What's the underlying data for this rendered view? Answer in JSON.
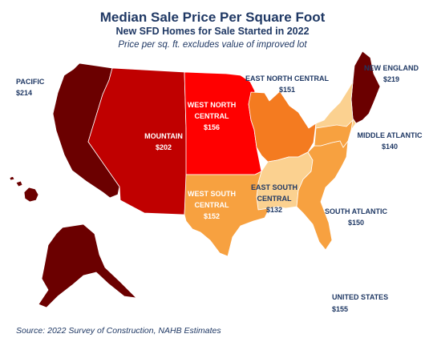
{
  "title": "Median Sale Price Per Square Foot",
  "subtitle": "New SFD Homes for Sale Started in 2022",
  "note": "Price per sq. ft. excludes value of improved lot",
  "source": "Source: 2022 Survey of Construction, NAHB Estimates",
  "colors": {
    "pacific": "#6b0000",
    "new_england": "#6b0000",
    "mountain": "#c00000",
    "west_north_central": "#ff0000",
    "east_north_central": "#f47b20",
    "west_south_central": "#f7a140",
    "south_atlantic": "#f7a140",
    "middle_atlantic": "#f7a140",
    "east_south_central": "#fbd190",
    "label_dark": "#1f3864",
    "label_white": "#ffffff"
  },
  "regions": {
    "pacific": {
      "name": "PACIFIC",
      "value": "$214"
    },
    "mountain": {
      "name": "MOUNTAIN",
      "value": "$202"
    },
    "west_north_central": {
      "name_line1": "WEST NORTH",
      "name_line2": "CENTRAL",
      "value": "$156"
    },
    "east_north_central": {
      "name": "EAST NORTH CENTRAL",
      "value": "$151"
    },
    "new_england": {
      "name": "NEW ENGLAND",
      "value": "$219"
    },
    "middle_atlantic": {
      "name": "MIDDLE ATLANTIC",
      "value": "$140"
    },
    "west_south_central": {
      "name_line1": "WEST SOUTH",
      "name_line2": "CENTRAL",
      "value": "$152"
    },
    "east_south_central": {
      "name_line1": "EAST SOUTH",
      "name_line2": "CENTRAL",
      "value": "$132"
    },
    "south_atlantic": {
      "name": "SOUTH ATLANTIC",
      "value": "$150"
    },
    "united_states": {
      "name": "UNITED STATES",
      "value": "$155"
    }
  }
}
